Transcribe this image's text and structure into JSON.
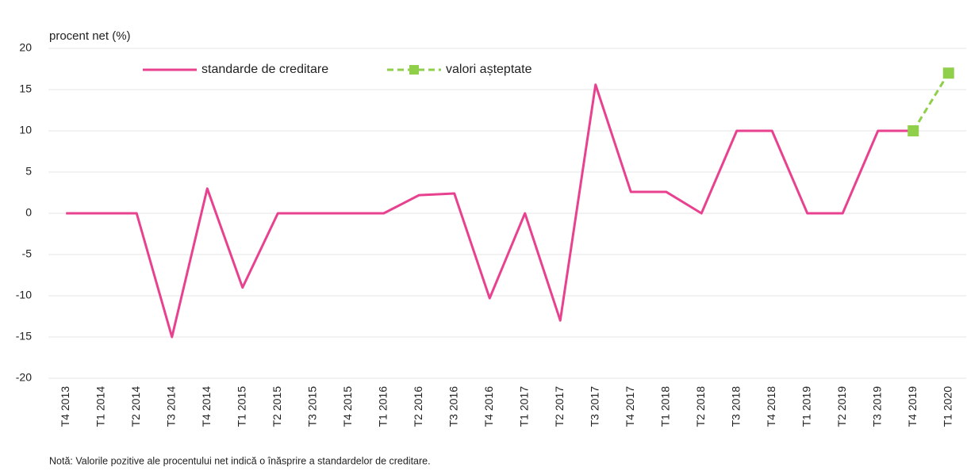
{
  "chart_data": {
    "type": "line",
    "y_label": "procent net (%)",
    "note": "Notă: Valorile pozitive ale procentului net indică o înăsprire a standardelor de creditare.",
    "categories": [
      "T4 2013",
      "T1 2014",
      "T2 2014",
      "T3 2014",
      "T4 2014",
      "T1 2015",
      "T2 2015",
      "T3 2015",
      "T4 2015",
      "T1 2016",
      "T2 2016",
      "T3 2016",
      "T4 2016",
      "T1 2017",
      "T2 2017",
      "T3 2017",
      "T4 2017",
      "T1 2018",
      "T2 2018",
      "T3 2018",
      "T4 2018",
      "T1 2019",
      "T2 2019",
      "T3 2019",
      "T4 2019",
      "T1 2020"
    ],
    "series": [
      {
        "name": "standarde de creditare",
        "color": "#e8418f",
        "dashed": false,
        "markers": false,
        "values": [
          0,
          0,
          0,
          -15,
          3,
          -9,
          0,
          0,
          0,
          0,
          2.2,
          2.4,
          -10.3,
          0,
          -13,
          15.6,
          2.6,
          2.6,
          0,
          10,
          10,
          0,
          0,
          10,
          10,
          null
        ]
      },
      {
        "name": "valori așteptate",
        "color": "#8fcf4a",
        "dashed": true,
        "markers": true,
        "values": [
          null,
          null,
          null,
          null,
          null,
          null,
          null,
          null,
          null,
          null,
          null,
          null,
          null,
          null,
          null,
          null,
          null,
          null,
          null,
          null,
          null,
          null,
          null,
          null,
          10,
          17
        ]
      }
    ],
    "ylim": [
      -20,
      20
    ],
    "yticks": [
      -20,
      -15,
      -10,
      -5,
      0,
      5,
      10,
      15,
      20
    ],
    "grid": true
  }
}
